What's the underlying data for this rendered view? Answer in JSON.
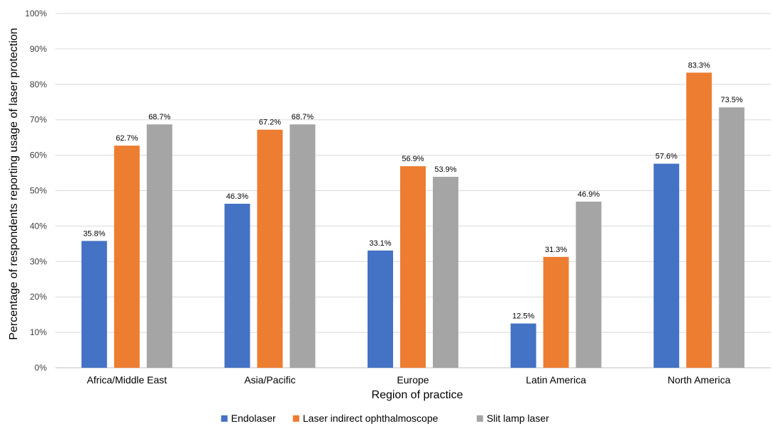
{
  "chart_data": {
    "type": "bar",
    "title": "",
    "xlabel": "Region of practice",
    "ylabel": "Percentage of respondents reporting usage of laser protection",
    "ylim": [
      0,
      100
    ],
    "yticks": [
      "0%",
      "10%",
      "20%",
      "30%",
      "40%",
      "50%",
      "60%",
      "70%",
      "80%",
      "90%",
      "100%"
    ],
    "grid": true,
    "legend_position": "bottom",
    "categories": [
      "Africa/Middle East",
      "Asia/Pacific",
      "Europe",
      "Latin America",
      "North America"
    ],
    "series": [
      {
        "name": "Endolaser",
        "color": "#4472C4",
        "values": [
          35.8,
          46.3,
          33.1,
          12.5,
          57.6
        ],
        "labels": [
          "35.8%",
          "46.3%",
          "33.1%",
          "12.5%",
          "57.6%"
        ]
      },
      {
        "name": "Laser indirect ophthalmoscope",
        "color": "#ED7D31",
        "values": [
          62.7,
          67.2,
          56.9,
          31.3,
          83.3
        ],
        "labels": [
          "62.7%",
          "67.2%",
          "56.9%",
          "31.3%",
          "83.3%"
        ]
      },
      {
        "name": "Slit lamp laser",
        "color": "#A5A5A5",
        "values": [
          68.7,
          68.7,
          53.9,
          46.9,
          73.5
        ],
        "labels": [
          "68.7%",
          "68.7%",
          "53.9%",
          "46.9%",
          "73.5%"
        ]
      }
    ]
  }
}
